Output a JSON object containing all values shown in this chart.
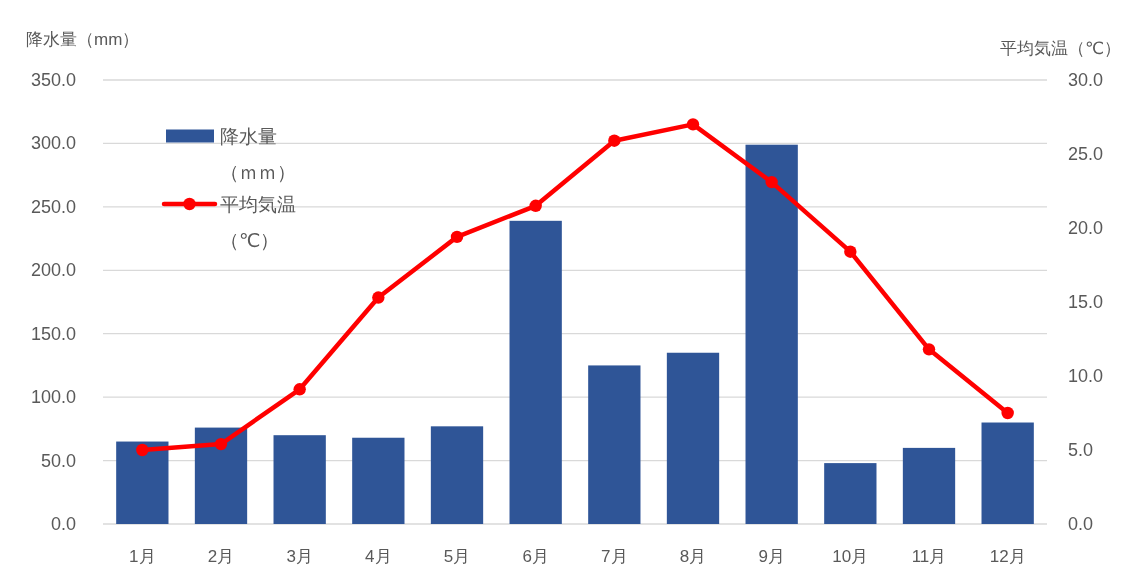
{
  "chart_data": {
    "type": "bar",
    "ylabel": "降水量（mm）",
    "y2label": "平均気温（℃）",
    "categories": [
      "1月",
      "2月",
      "3月",
      "4月",
      "5月",
      "6月",
      "7月",
      "8月",
      "9月",
      "10月",
      "11月",
      "12月"
    ],
    "series": [
      {
        "name": "降水量（ｍｍ）",
        "color": "#2f5597",
        "values": [
          65,
          76,
          70,
          68,
          77,
          239,
          125,
          135,
          299,
          48,
          60,
          80
        ]
      },
      {
        "name": "平均気温（℃）",
        "type": "line",
        "axis": "y2",
        "color": "#ff0000",
        "values": [
          5.0,
          5.4,
          9.1,
          15.3,
          19.4,
          21.5,
          25.9,
          27.0,
          23.1,
          18.4,
          11.8,
          7.5
        ]
      }
    ],
    "ylim": [
      0,
      350
    ],
    "yticks": [
      {
        "value": 0,
        "label": "0.0"
      },
      {
        "value": 50,
        "label": "50.0"
      },
      {
        "value": 100,
        "label": "100.0"
      },
      {
        "value": 150,
        "label": "150.0"
      },
      {
        "value": 200,
        "label": "200.0"
      },
      {
        "value": 250,
        "label": "250.0"
      },
      {
        "value": 300,
        "label": "300.0"
      },
      {
        "value": 350,
        "label": "350.0"
      }
    ],
    "y2lim": [
      0,
      30
    ],
    "y2ticks": [
      {
        "value": 0,
        "label": "0.0"
      },
      {
        "value": 5,
        "label": "5.0"
      },
      {
        "value": 10,
        "label": "10.0"
      },
      {
        "value": 15,
        "label": "15.0"
      },
      {
        "value": 20,
        "label": "20.0"
      },
      {
        "value": 25,
        "label": "25.0"
      },
      {
        "value": 30,
        "label": "30.0"
      }
    ],
    "grid": "y",
    "legend": "top left",
    "marker": "circle"
  }
}
